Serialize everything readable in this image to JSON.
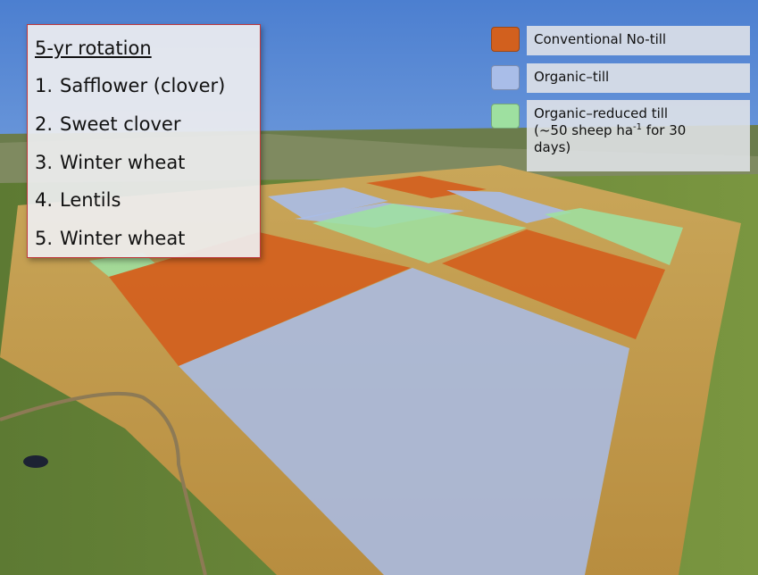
{
  "rotation": {
    "title": "5-yr rotation",
    "items": [
      {
        "num": "1.",
        "crop": "Safflower (clover)"
      },
      {
        "num": "2.",
        "crop": "Sweet clover"
      },
      {
        "num": "3.",
        "crop": "Winter wheat"
      },
      {
        "num": "4.",
        "crop": "Lentils"
      },
      {
        "num": "5.",
        "crop": "Winter wheat"
      }
    ]
  },
  "legend": [
    {
      "label": "Conventional No-till",
      "color": "#d2601e"
    },
    {
      "label": "Organic–till",
      "color": "#a9bde8"
    },
    {
      "label_prefix": "Organic–reduced till",
      "label_line2": "(~50 sheep ha",
      "label_sup": "-1",
      "label_suffix": " for 30",
      "label_line3": "days)",
      "color": "#9ee0a0"
    }
  ]
}
